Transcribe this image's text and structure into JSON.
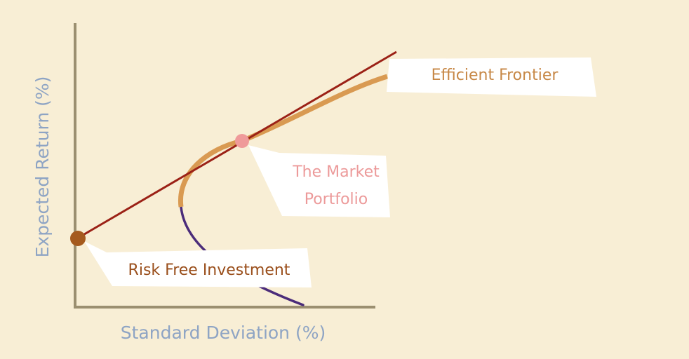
{
  "axes": {
    "x_label": "Standard Deviation (%)",
    "y_label": "Expected Return (%)"
  },
  "callouts": {
    "efficient_frontier": "Efficient Frontier",
    "market_portfolio_line1": "The Market",
    "market_portfolio_line2": "Portfolio",
    "risk_free": "Risk Free Investment"
  },
  "colors": {
    "background": "#f8eed5",
    "axis": "#9b8f70",
    "axis_label": "#8ea4c4",
    "capital_market_line": "#9b2116",
    "efficient_frontier": "#d99a52",
    "inefficient_frontier": "#4b2c7a",
    "market_portfolio": "#ef9a9a",
    "risk_free": "#a55a1e",
    "efficient_frontier_text": "#c78847",
    "market_portfolio_text": "#ec9a9a",
    "risk_free_text": "#9a4f1c",
    "callout_fill": "#ffffff"
  }
}
